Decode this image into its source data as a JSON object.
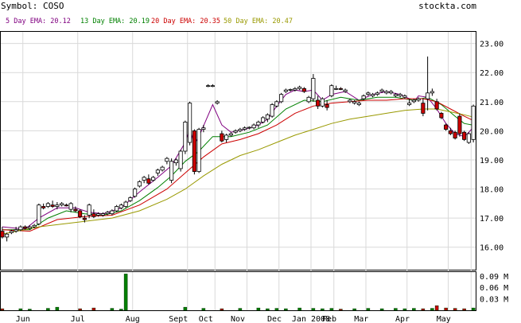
{
  "header": {
    "symbol_text": "Symbol: COSO",
    "site": "stockta.com"
  },
  "legend": [
    {
      "label": "5 Day EMA: 20.12",
      "color": "#800080"
    },
    {
      "label": "13 Day EMA: 20.19",
      "color": "#008000"
    },
    {
      "label": "20 Day EMA: 20.35",
      "color": "#cc0000"
    },
    {
      "label": "50 Day EMA: 20.47",
      "color": "#999900"
    }
  ],
  "chart_data": {
    "type": "candlestick",
    "price_axis": {
      "ylim": [
        15.2,
        23.4
      ],
      "ticks": [
        "16.00",
        "17.00",
        "18.00",
        "19.00",
        "20.00",
        "21.00",
        "22.00",
        "23.00"
      ]
    },
    "volume_axis": {
      "ylim": [
        0,
        0.1
      ],
      "ticks": [
        "0.03 M",
        "0.06 M",
        "0.09 M"
      ]
    },
    "x_labels": [
      "Jun",
      "Jul",
      "Aug",
      "Sept",
      "Oct",
      "Nov",
      "Dec",
      "Jan 2008",
      "Feb",
      "Mar",
      "Apr",
      "May"
    ],
    "candles": [
      [
        16.55,
        16.7,
        16.3,
        16.35
      ],
      [
        16.35,
        16.5,
        16.2,
        16.45
      ],
      [
        16.5,
        16.6,
        16.45,
        16.55
      ],
      [
        16.55,
        16.7,
        16.5,
        16.6
      ],
      [
        16.6,
        16.75,
        16.55,
        16.7
      ],
      [
        16.7,
        16.75,
        16.6,
        16.65
      ],
      [
        16.65,
        16.75,
        16.6,
        16.7
      ],
      [
        16.7,
        16.8,
        16.65,
        16.75
      ],
      [
        16.8,
        17.5,
        16.75,
        17.45
      ],
      [
        17.4,
        17.5,
        17.3,
        17.35
      ],
      [
        17.4,
        17.55,
        17.35,
        17.5
      ],
      [
        17.45,
        17.6,
        17.35,
        17.4
      ],
      [
        17.4,
        17.55,
        17.3,
        17.45
      ],
      [
        17.45,
        17.55,
        17.4,
        17.5
      ],
      [
        17.45,
        17.5,
        17.4,
        17.42
      ],
      [
        17.3,
        17.55,
        17.2,
        17.5
      ],
      [
        17.3,
        17.4,
        17.2,
        17.25
      ],
      [
        17.25,
        17.3,
        17.0,
        17.05
      ],
      [
        17.0,
        17.1,
        16.85,
        16.95
      ],
      [
        17.1,
        17.5,
        17.0,
        17.45
      ],
      [
        17.15,
        17.3,
        17.0,
        17.05
      ],
      [
        17.1,
        17.2,
        17.05,
        17.15
      ],
      [
        17.1,
        17.2,
        17.05,
        17.15
      ],
      [
        17.15,
        17.25,
        17.1,
        17.2
      ],
      [
        17.15,
        17.3,
        17.1,
        17.25
      ],
      [
        17.25,
        17.45,
        17.2,
        17.4
      ],
      [
        17.35,
        17.5,
        17.3,
        17.45
      ],
      [
        17.4,
        17.6,
        17.35,
        17.55
      ],
      [
        17.6,
        17.75,
        17.55,
        17.7
      ],
      [
        17.75,
        18.05,
        17.7,
        18.0
      ],
      [
        18.1,
        18.3,
        18.05,
        18.25
      ],
      [
        18.3,
        18.45,
        18.2,
        18.4
      ],
      [
        18.35,
        18.5,
        18.15,
        18.2
      ],
      [
        18.3,
        18.45,
        18.25,
        18.4
      ],
      [
        18.55,
        18.7,
        18.45,
        18.65
      ],
      [
        18.65,
        18.8,
        18.6,
        18.75
      ],
      [
        18.95,
        19.1,
        18.85,
        19.05
      ],
      [
        18.3,
        19.05,
        18.2,
        18.95
      ],
      [
        18.9,
        19.05,
        18.8,
        19.0
      ],
      [
        18.7,
        19.35,
        18.6,
        19.3
      ],
      [
        19.3,
        20.35,
        19.2,
        20.3
      ],
      [
        19.6,
        21.0,
        19.5,
        20.95
      ],
      [
        20.0,
        20.05,
        18.5,
        18.6
      ],
      [
        18.6,
        20.1,
        18.55,
        20.05
      ],
      [
        20.05,
        20.2,
        19.95,
        20.1
      ],
      [
        21.55,
        21.6,
        21.5,
        21.55
      ],
      [
        21.55,
        21.6,
        21.5,
        21.55
      ],
      [
        20.95,
        21.05,
        20.9,
        21.0
      ],
      [
        19.9,
        20.0,
        19.6,
        19.65
      ],
      [
        19.7,
        19.9,
        19.6,
        19.85
      ],
      [
        19.85,
        19.95,
        19.8,
        19.9
      ],
      [
        19.95,
        20.05,
        19.9,
        20.0
      ],
      [
        20.0,
        20.1,
        19.95,
        20.05
      ],
      [
        20.05,
        20.15,
        20.0,
        20.1
      ],
      [
        20.1,
        20.15,
        20.05,
        20.12
      ],
      [
        20.1,
        20.25,
        20.05,
        20.2
      ],
      [
        20.2,
        20.35,
        20.1,
        20.3
      ],
      [
        20.3,
        20.5,
        20.25,
        20.45
      ],
      [
        20.4,
        20.6,
        20.3,
        20.55
      ],
      [
        20.5,
        20.95,
        20.45,
        20.9
      ],
      [
        20.85,
        21.05,
        20.8,
        21.0
      ],
      [
        21.0,
        21.3,
        20.95,
        21.25
      ],
      [
        21.35,
        21.45,
        21.3,
        21.4
      ],
      [
        21.4,
        21.45,
        21.35,
        21.42
      ],
      [
        21.4,
        21.5,
        21.35,
        21.45
      ],
      [
        21.45,
        21.55,
        21.4,
        21.5
      ],
      [
        21.45,
        21.5,
        21.3,
        21.35
      ],
      [
        21.0,
        21.2,
        20.95,
        21.15
      ],
      [
        21.1,
        21.95,
        21.0,
        21.8
      ],
      [
        21.05,
        21.2,
        20.75,
        20.85
      ],
      [
        20.85,
        21.15,
        20.8,
        21.1
      ],
      [
        20.9,
        21.05,
        20.7,
        20.8
      ],
      [
        21.2,
        21.6,
        21.15,
        21.55
      ],
      [
        21.45,
        21.55,
        21.4,
        21.45
      ],
      [
        21.45,
        21.5,
        21.4,
        21.42
      ],
      [
        21.35,
        21.45,
        21.3,
        21.4
      ],
      [
        21.0,
        21.1,
        20.95,
        21.05
      ],
      [
        20.95,
        21.05,
        20.9,
        21.0
      ],
      [
        20.9,
        21.0,
        20.85,
        20.95
      ],
      [
        21.1,
        21.25,
        21.05,
        21.2
      ],
      [
        21.25,
        21.35,
        21.2,
        21.3
      ],
      [
        21.2,
        21.3,
        21.15,
        21.25
      ],
      [
        21.25,
        21.35,
        21.2,
        21.3
      ],
      [
        21.35,
        21.45,
        21.3,
        21.4
      ],
      [
        21.3,
        21.4,
        21.25,
        21.35
      ],
      [
        21.3,
        21.4,
        21.25,
        21.35
      ],
      [
        21.2,
        21.3,
        21.15,
        21.25
      ],
      [
        21.2,
        21.3,
        21.15,
        21.25
      ],
      [
        21.15,
        21.25,
        21.1,
        21.2
      ],
      [
        20.9,
        21.1,
        20.85,
        20.95
      ],
      [
        21.0,
        21.1,
        20.95,
        21.05
      ],
      [
        21.05,
        21.15,
        21.0,
        21.1
      ],
      [
        20.95,
        21.1,
        20.5,
        20.6
      ],
      [
        21.1,
        22.55,
        20.7,
        21.3
      ],
      [
        21.3,
        21.45,
        21.2,
        21.35
      ],
      [
        21.0,
        21.1,
        20.7,
        20.75
      ],
      [
        20.6,
        20.65,
        20.4,
        20.45
      ],
      [
        20.2,
        20.25,
        20.0,
        20.05
      ],
      [
        20.0,
        20.1,
        19.85,
        19.9
      ],
      [
        19.95,
        20.0,
        19.7,
        19.75
      ],
      [
        20.5,
        20.6,
        19.8,
        19.9
      ],
      [
        19.95,
        20.0,
        19.65,
        19.7
      ],
      [
        19.6,
        19.95,
        19.55,
        19.9
      ],
      [
        19.7,
        20.9,
        19.6,
        20.85
      ]
    ],
    "ema": {
      "5 Day EMA": [
        [
          0,
          16.7
        ],
        [
          5,
          16.62
        ],
        [
          8,
          17.0
        ],
        [
          12,
          17.35
        ],
        [
          16,
          17.35
        ],
        [
          19,
          17.2
        ],
        [
          22,
          17.15
        ],
        [
          26,
          17.35
        ],
        [
          30,
          17.9
        ],
        [
          34,
          18.4
        ],
        [
          37,
          18.8
        ],
        [
          40,
          19.6
        ],
        [
          41,
          20.05
        ],
        [
          42,
          19.55
        ],
        [
          43,
          19.8
        ],
        [
          46,
          20.9
        ],
        [
          48,
          20.2
        ],
        [
          50,
          19.95
        ],
        [
          53,
          20.05
        ],
        [
          56,
          20.2
        ],
        [
          58,
          20.4
        ],
        [
          60,
          20.85
        ],
        [
          62,
          21.25
        ],
        [
          64,
          21.4
        ],
        [
          66,
          21.35
        ],
        [
          68,
          21.4
        ],
        [
          70,
          21.05
        ],
        [
          72,
          21.25
        ],
        [
          75,
          21.35
        ],
        [
          78,
          21.05
        ],
        [
          81,
          21.25
        ],
        [
          84,
          21.35
        ],
        [
          87,
          21.25
        ],
        [
          89,
          21.1
        ],
        [
          90,
          21.0
        ],
        [
          91,
          21.2
        ],
        [
          93,
          21.15
        ],
        [
          95,
          20.75
        ],
        [
          97,
          20.25
        ],
        [
          99,
          19.9
        ],
        [
          101,
          19.8
        ],
        [
          102,
          19.95
        ],
        [
          103,
          20.12
        ]
      ],
      "13 Day EMA": [
        [
          0,
          16.6
        ],
        [
          6,
          16.6
        ],
        [
          10,
          17.0
        ],
        [
          14,
          17.25
        ],
        [
          18,
          17.15
        ],
        [
          22,
          17.1
        ],
        [
          26,
          17.25
        ],
        [
          30,
          17.6
        ],
        [
          34,
          18.05
        ],
        [
          37,
          18.45
        ],
        [
          40,
          18.95
        ],
        [
          43,
          19.3
        ],
        [
          46,
          19.8
        ],
        [
          50,
          19.8
        ],
        [
          54,
          19.95
        ],
        [
          58,
          20.2
        ],
        [
          62,
          20.75
        ],
        [
          66,
          21.05
        ],
        [
          70,
          21.0
        ],
        [
          74,
          21.15
        ],
        [
          78,
          21.05
        ],
        [
          82,
          21.15
        ],
        [
          86,
          21.15
        ],
        [
          90,
          21.05
        ],
        [
          93,
          21.15
        ],
        [
          96,
          20.9
        ],
        [
          99,
          20.5
        ],
        [
          101,
          20.25
        ],
        [
          103,
          20.19
        ]
      ],
      "20 Day EMA": [
        [
          0,
          16.6
        ],
        [
          6,
          16.55
        ],
        [
          12,
          16.95
        ],
        [
          18,
          17.05
        ],
        [
          24,
          17.1
        ],
        [
          30,
          17.45
        ],
        [
          36,
          18.0
        ],
        [
          40,
          18.55
        ],
        [
          44,
          19.1
        ],
        [
          48,
          19.55
        ],
        [
          52,
          19.7
        ],
        [
          56,
          19.9
        ],
        [
          60,
          20.2
        ],
        [
          64,
          20.6
        ],
        [
          68,
          20.85
        ],
        [
          72,
          20.95
        ],
        [
          76,
          21.0
        ],
        [
          80,
          21.05
        ],
        [
          84,
          21.05
        ],
        [
          88,
          21.1
        ],
        [
          92,
          21.1
        ],
        [
          95,
          21.0
        ],
        [
          98,
          20.75
        ],
        [
          101,
          20.5
        ],
        [
          103,
          20.35
        ]
      ],
      "50 Day EMA": [
        [
          0,
          16.45
        ],
        [
          8,
          16.7
        ],
        [
          16,
          16.85
        ],
        [
          24,
          17.0
        ],
        [
          30,
          17.25
        ],
        [
          36,
          17.65
        ],
        [
          40,
          18.0
        ],
        [
          44,
          18.45
        ],
        [
          48,
          18.85
        ],
        [
          52,
          19.15
        ],
        [
          56,
          19.35
        ],
        [
          60,
          19.6
        ],
        [
          64,
          19.85
        ],
        [
          68,
          20.05
        ],
        [
          72,
          20.25
        ],
        [
          76,
          20.4
        ],
        [
          80,
          20.5
        ],
        [
          84,
          20.6
        ],
        [
          88,
          20.7
        ],
        [
          92,
          20.75
        ],
        [
          95,
          20.75
        ],
        [
          98,
          20.65
        ],
        [
          101,
          20.55
        ],
        [
          103,
          20.47
        ]
      ]
    },
    "volume": [
      [
        0,
        0.004
      ],
      [
        4,
        0.004
      ],
      [
        6,
        0.003
      ],
      [
        10,
        0.005
      ],
      [
        12,
        0.008
      ],
      [
        17,
        0.004
      ],
      [
        20,
        0.006
      ],
      [
        24,
        0.005
      ],
      [
        26,
        0.003
      ],
      [
        27,
        0.095
      ],
      [
        40,
        0.008
      ],
      [
        44,
        0.005
      ],
      [
        48,
        0.004
      ],
      [
        52,
        0.005
      ],
      [
        56,
        0.006
      ],
      [
        58,
        0.004
      ],
      [
        60,
        0.005
      ],
      [
        62,
        0.004
      ],
      [
        65,
        0.006
      ],
      [
        68,
        0.005
      ],
      [
        70,
        0.004
      ],
      [
        72,
        0.005
      ],
      [
        74,
        0.003
      ],
      [
        77,
        0.004
      ],
      [
        80,
        0.005
      ],
      [
        83,
        0.004
      ],
      [
        86,
        0.005
      ],
      [
        88,
        0.004
      ],
      [
        90,
        0.005
      ],
      [
        92,
        0.004
      ],
      [
        94,
        0.005
      ],
      [
        95,
        0.012
      ],
      [
        97,
        0.006
      ],
      [
        99,
        0.005
      ],
      [
        101,
        0.004
      ],
      [
        103,
        0.006
      ]
    ]
  }
}
